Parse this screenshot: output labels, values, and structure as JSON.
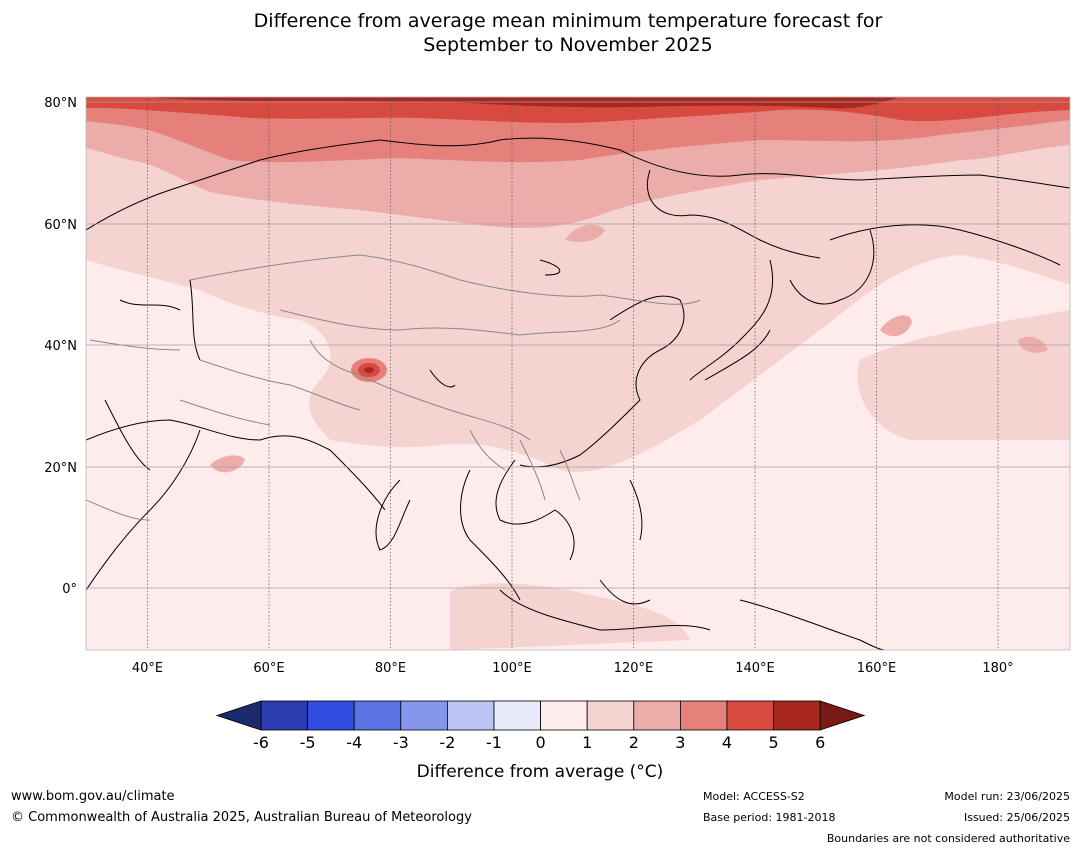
{
  "title": {
    "line1": "Difference from average mean minimum temperature forecast for",
    "line2": "September to November 2025"
  },
  "map": {
    "lat_labels": [
      "80°N",
      "60°N",
      "40°N",
      "20°N",
      "0°"
    ],
    "lon_labels": [
      "40°E",
      "60°E",
      "80°E",
      "100°E",
      "120°E",
      "140°E",
      "160°E",
      "180°"
    ]
  },
  "colorbar": {
    "ticks": [
      "-6",
      "-5",
      "-4",
      "-3",
      "-2",
      "-1",
      "0",
      "1",
      "2",
      "3",
      "4",
      "5",
      "6"
    ],
    "colors": [
      "#1c2a6e",
      "#2a3db0",
      "#2f4ddf",
      "#5a74e6",
      "#8597ec",
      "#bcc6f4",
      "#e6eafa",
      "#fdeceb",
      "#f5d3d1",
      "#ecaca9",
      "#e5807b",
      "#d84a3f",
      "#a8281e",
      "#7a1a14"
    ],
    "label": "Difference from average (°C)"
  },
  "footer": {
    "website": "www.bom.gov.au/climate",
    "copyright": "© Commonwealth of Australia 2025, Australian Bureau of Meteorology",
    "model": "Model: ACCESS-S2",
    "base_period": "Base period: 1981-2018",
    "model_run": "Model run: 23/06/2025",
    "issued": "Issued: 25/06/2025",
    "disclaimer": "Boundaries are not considered authoritative"
  }
}
